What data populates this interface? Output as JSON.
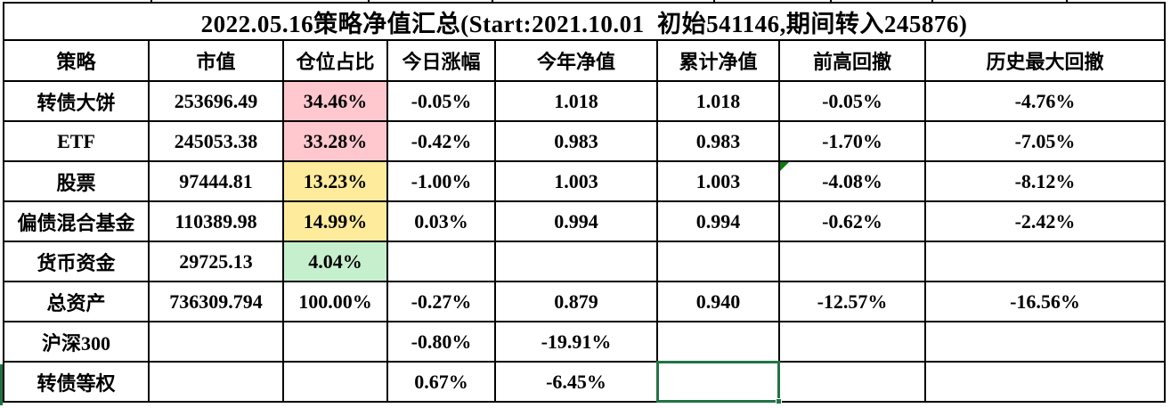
{
  "title": "2022.05.16策略净值汇总(Start:2021.10.01  初始541146,期间转入245876)",
  "colors": {
    "bad_bg": "#FFC7CE",
    "bad_text": "#9C0006",
    "neutral_bg": "#FFEB9C",
    "neutral_text": "#9C6500",
    "good_bg": "#C6EFCE",
    "good_text": "#006100",
    "selection": "#217346",
    "flag": "#0B7D0B",
    "gridline": "#000000"
  },
  "table": {
    "columns": [
      {
        "key": "strategy",
        "label": "策略"
      },
      {
        "key": "market-value",
        "label": "市值"
      },
      {
        "key": "position-pct",
        "label": "仓位占比"
      },
      {
        "key": "today-change",
        "label": "今日涨幅"
      },
      {
        "key": "ytd-nav",
        "label": "今年净值"
      },
      {
        "key": "cum-nav",
        "label": "累计净值"
      },
      {
        "key": "prev-high-drawdown",
        "label": "前高回撤"
      },
      {
        "key": "max-drawdown",
        "label": "历史最大回撤"
      }
    ],
    "rows": [
      {
        "cells": [
          "转债大饼",
          "253696.49",
          "34.46%",
          "-0.05%",
          "1.018",
          "1.018",
          "-0.05%",
          "-4.76%"
        ],
        "position_style": "bad"
      },
      {
        "cells": [
          "ETF",
          "245053.38",
          "33.28%",
          "-0.42%",
          "0.983",
          "0.983",
          "-1.70%",
          "-7.05%"
        ],
        "position_style": "bad"
      },
      {
        "cells": [
          "股票",
          "97444.81",
          "13.23%",
          "-1.00%",
          "1.003",
          "1.003",
          "-4.08%",
          "-8.12%"
        ],
        "position_style": "neutral",
        "flag_col": 6
      },
      {
        "cells": [
          "偏债混合基金",
          "110389.98",
          "14.99%",
          "0.03%",
          "0.994",
          "0.994",
          "-0.62%",
          "-2.42%"
        ],
        "position_style": "neutral"
      },
      {
        "cells": [
          "货币资金",
          "29725.13",
          "4.04%",
          "",
          "",
          "",
          "",
          ""
        ],
        "position_style": "good"
      },
      {
        "cells": [
          "总资产",
          "736309.794",
          "100.00%",
          "-0.27%",
          "0.879",
          "0.940",
          "-12.57%",
          "-16.56%"
        ],
        "position_style": "none"
      },
      {
        "cells": [
          "沪深300",
          "",
          "",
          "-0.80%",
          "-19.91%",
          "",
          "",
          ""
        ],
        "position_style": "none"
      },
      {
        "cells": [
          "转债等权",
          "",
          "",
          "0.67%",
          "-6.45%",
          "",
          "",
          ""
        ],
        "position_style": "none",
        "selected_col": 5
      }
    ]
  }
}
